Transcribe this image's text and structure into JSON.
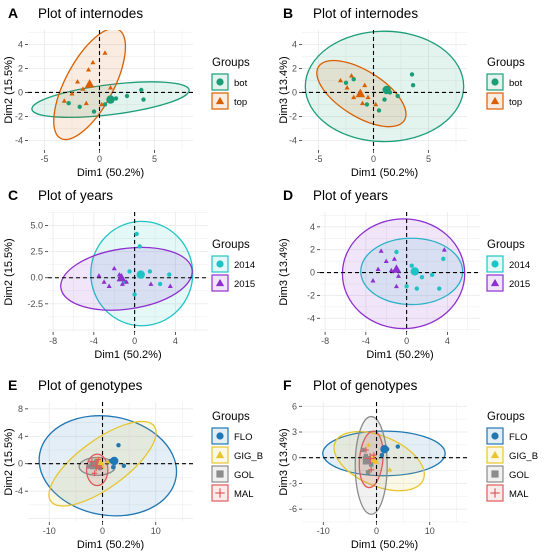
{
  "chart_data": [
    {
      "type": "scatter",
      "letter": "A",
      "title": "Plot of internodes",
      "xlabel": "Dim1 (50.2%)",
      "ylabel": "Dim2 (15.5%)",
      "xlim": [
        -6.5,
        8.5
      ],
      "ylim": [
        -4.8,
        5.2
      ],
      "xticks": [
        -5,
        0,
        5
      ],
      "yticks": [
        -4,
        -2,
        0,
        2,
        4
      ],
      "legend_title": "Groups",
      "legend_position": "right",
      "grid": true,
      "series": [
        {
          "name": "bot",
          "color": "#1b9e77",
          "marker": "circle",
          "points": [
            [
              -2.8,
              -0.9
            ],
            [
              -1.8,
              -1.2
            ],
            [
              -0.5,
              -1.6
            ],
            [
              0.5,
              -1.0
            ],
            [
              1.5,
              -0.5
            ],
            [
              2.5,
              -0.3
            ],
            [
              3.8,
              0.2
            ],
            [
              4.0,
              -0.6
            ]
          ],
          "mean": [
            1.0,
            -0.6
          ],
          "ellipse": {
            "cx": 1.0,
            "cy": -0.6,
            "rx": 7.2,
            "ry": 1.25,
            "angle": 7
          }
        },
        {
          "name": "top",
          "color": "#d95f02",
          "marker": "triangle",
          "points": [
            [
              -3.2,
              -0.7
            ],
            [
              -2.5,
              -0.1
            ],
            [
              -2.0,
              0.9
            ],
            [
              -1.5,
              0.3
            ],
            [
              -1.0,
              1.9
            ],
            [
              -0.6,
              2.5
            ],
            [
              0.5,
              3.3
            ],
            [
              0.2,
              -1.0
            ],
            [
              -1.2,
              -0.9
            ],
            [
              1.0,
              0.4
            ]
          ],
          "mean": [
            -0.9,
            0.7
          ],
          "ellipse": {
            "cx": -0.9,
            "cy": 0.7,
            "rx": 5.6,
            "ry": 2.0,
            "angle": 62
          }
        }
      ]
    },
    {
      "type": "scatter",
      "letter": "B",
      "title": "Plot of internodes",
      "xlabel": "Dim1 (50.2%)",
      "ylabel": "Dim3 (13.4%)",
      "xlim": [
        -6.5,
        8.5
      ],
      "ylim": [
        -4.8,
        5.2
      ],
      "xticks": [
        -5,
        0,
        5
      ],
      "yticks": [
        -4,
        -2,
        0,
        2,
        4
      ],
      "legend_title": "Groups",
      "legend_position": "right",
      "grid": true,
      "series": [
        {
          "name": "bot",
          "color": "#1b9e77",
          "marker": "circle",
          "points": [
            [
              -2.5,
              0.8
            ],
            [
              -1.8,
              1.1
            ],
            [
              -0.6,
              -1.0
            ],
            [
              0.5,
              -1.5
            ],
            [
              1.5,
              0.0
            ],
            [
              2.2,
              -0.3
            ],
            [
              3.5,
              1.5
            ],
            [
              3.6,
              0.6
            ],
            [
              1.0,
              -0.6
            ]
          ],
          "mean": [
            1.2,
            0.2
          ],
          "ellipse": {
            "cx": 1.0,
            "cy": 0.5,
            "rx": 7.2,
            "ry": 4.6,
            "angle": 0
          }
        },
        {
          "name": "top",
          "color": "#d95f02",
          "marker": "triangle",
          "points": [
            [
              -3.0,
              1.0
            ],
            [
              -2.0,
              1.4
            ],
            [
              -1.8,
              -0.4
            ],
            [
              -1.2,
              0.1
            ],
            [
              -1.0,
              -0.9
            ],
            [
              -0.5,
              -0.4
            ],
            [
              0.2,
              -1.0
            ],
            [
              -2.4,
              0.4
            ],
            [
              -0.8,
              0.6
            ]
          ],
          "mean": [
            -1.2,
            -0.1
          ],
          "ellipse": {
            "cx": -1.1,
            "cy": -0.1,
            "rx": 4.6,
            "ry": 1.9,
            "angle": -32
          }
        }
      ]
    },
    {
      "type": "scatter",
      "letter": "C",
      "title": "Plot of years",
      "xlabel": "Dim1 (50.2%)",
      "ylabel": "Dim2 (15.5%)",
      "xlim": [
        -8.5,
        7.2
      ],
      "ylim": [
        -5.2,
        6.3
      ],
      "xticks": [
        -8,
        -4,
        0,
        4
      ],
      "yticks": [
        -2.5,
        0.0,
        2.5,
        5.0
      ],
      "tick_labels_y": [
        "-2.5",
        "0.0",
        "2.5",
        "5.0"
      ],
      "legend_title": "Groups",
      "legend_position": "right",
      "grid": true,
      "series": [
        {
          "name": "2014",
          "color": "#1fc3c6",
          "marker": "circle",
          "points": [
            [
              0.2,
              4.2
            ],
            [
              0.5,
              3.0
            ],
            [
              -0.5,
              0.6
            ],
            [
              1.5,
              0.6
            ],
            [
              2.5,
              -0.6
            ],
            [
              -1.0,
              -0.4
            ],
            [
              0.0,
              -1.6
            ],
            [
              3.4,
              0.3
            ]
          ],
          "mean": [
            0.6,
            0.3
          ],
          "ellipse": {
            "cx": 0.7,
            "cy": 0.4,
            "rx": 5.0,
            "ry": 5.0,
            "angle": 0
          }
        },
        {
          "name": "2015",
          "color": "#8e2fcf",
          "marker": "triangle",
          "points": [
            [
              -3.5,
              0.2
            ],
            [
              -2.5,
              -0.8
            ],
            [
              -2.0,
              0.9
            ],
            [
              -1.5,
              0.3
            ],
            [
              -1.2,
              -0.6
            ],
            [
              -0.8,
              -0.4
            ],
            [
              -3.0,
              -0.4
            ],
            [
              1.6,
              -0.6
            ],
            [
              3.5,
              -0.8
            ]
          ],
          "mean": [
            -1.3,
            0.0
          ],
          "ellipse": {
            "cx": -0.8,
            "cy": -0.1,
            "rx": 6.5,
            "ry": 2.9,
            "angle": 8
          }
        }
      ]
    },
    {
      "type": "scatter",
      "letter": "D",
      "title": "Plot of years",
      "xlabel": "Dim1 (50.2%)",
      "ylabel": "Dim3 (13.4%)",
      "xlim": [
        -8.5,
        7.2
      ],
      "ylim": [
        -5.2,
        5.3
      ],
      "xticks": [
        -8,
        -4,
        0,
        4
      ],
      "yticks": [
        -4,
        -2,
        0,
        2,
        4
      ],
      "legend_title": "Groups",
      "legend_position": "right",
      "grid": true,
      "series": [
        {
          "name": "2014",
          "color": "#1fc3c6",
          "marker": "circle",
          "points": [
            [
              -1.0,
              1.8
            ],
            [
              0.5,
              0.6
            ],
            [
              1.5,
              -0.4
            ],
            [
              2.5,
              -0.2
            ],
            [
              3.6,
              1.2
            ],
            [
              0.0,
              -1.2
            ],
            [
              1.0,
              -1.4
            ],
            [
              3.2,
              -1.4
            ]
          ],
          "mean": [
            0.8,
            0.1
          ],
          "ellipse": {
            "cx": 0.5,
            "cy": 0.1,
            "rx": 5.0,
            "ry": 2.9,
            "angle": 0
          }
        },
        {
          "name": "2015",
          "color": "#8e2fcf",
          "marker": "triangle",
          "points": [
            [
              -2.5,
              1.9
            ],
            [
              -2.0,
              1.0
            ],
            [
              -1.5,
              0.2
            ],
            [
              -1.2,
              1.2
            ],
            [
              -0.8,
              -0.3
            ],
            [
              -2.8,
              0.3
            ],
            [
              -3.3,
              -0.7
            ],
            [
              -1.0,
              -1.2
            ],
            [
              3.7,
              2.0
            ]
          ],
          "mean": [
            -1.0,
            0.3
          ],
          "ellipse": {
            "cx": -0.3,
            "cy": -0.1,
            "rx": 6.0,
            "ry": 4.8,
            "angle": 0
          }
        }
      ]
    },
    {
      "type": "scatter",
      "letter": "E",
      "title": "Plot of genotypes",
      "xlabel": "Dim1 (50.2%)",
      "ylabel": "Dim2 (15.5%)",
      "xlim": [
        -14,
        17
      ],
      "ylim": [
        -8.5,
        9
      ],
      "xticks": [
        -10,
        0,
        10
      ],
      "yticks": [
        -4,
        0,
        4,
        8
      ],
      "legend_title": "Groups",
      "legend_position": "right",
      "grid": true,
      "series": [
        {
          "name": "FLO",
          "color": "#1f77b4",
          "marker": "circle",
          "points": [
            [
              3.0,
              2.7
            ],
            [
              1.5,
              0.4
            ],
            [
              4.0,
              -0.3
            ],
            [
              -1.0,
              0.3
            ],
            [
              2.0,
              -0.5
            ]
          ],
          "mean": [
            2.2,
            0.4
          ],
          "ellipse": {
            "cx": 1.0,
            "cy": -0.3,
            "rx": 13.0,
            "ry": 7.2,
            "angle": -10
          }
        },
        {
          "name": "GIG_B",
          "color": "#e8c52e",
          "marker": "triangle",
          "points": [
            [
              -1.0,
              0.6
            ],
            [
              0.0,
              -0.4
            ],
            [
              -2.0,
              0.2
            ],
            [
              1.0,
              0.3
            ]
          ],
          "mean": [
            -0.5,
            0.2
          ],
          "ellipse": {
            "cx": 0.0,
            "cy": 0.0,
            "rx": 12.0,
            "ry": 3.5,
            "angle": 36
          }
        },
        {
          "name": "GOL",
          "color": "#8c8c8c",
          "marker": "square",
          "points": [
            [
              -2.0,
              -0.1
            ],
            [
              -1.2,
              0.3
            ],
            [
              -0.5,
              -0.6
            ],
            [
              -2.6,
              -0.4
            ]
          ],
          "mean": [
            -1.6,
            -0.2
          ],
          "ellipse": {
            "cx": -1.0,
            "cy": -0.4,
            "rx": 3.4,
            "ry": 1.3,
            "angle": 0
          }
        },
        {
          "name": "MAL",
          "color": "#e05a5a",
          "marker": "plus",
          "points": [
            [
              -1.5,
              -1.4
            ],
            [
              -0.5,
              -0.6
            ],
            [
              -2.0,
              0.3
            ],
            [
              -0.8,
              0.6
            ]
          ],
          "mean": [
            -1.2,
            -0.3
          ],
          "ellipse": {
            "cx": -1.0,
            "cy": -0.9,
            "rx": 2.0,
            "ry": 2.3,
            "angle": 0
          }
        }
      ]
    },
    {
      "type": "scatter",
      "letter": "F",
      "title": "Plot of genotypes",
      "xlabel": "Dim1 (50.2%)",
      "ylabel": "Dim3 (13.4%)",
      "xlim": [
        -14,
        17
      ],
      "ylim": [
        -7.5,
        6.5
      ],
      "xticks": [
        -10,
        0,
        10
      ],
      "yticks": [
        -6,
        -3,
        0,
        3,
        6
      ],
      "legend_title": "Groups",
      "legend_position": "right",
      "grid": true,
      "series": [
        {
          "name": "FLO",
          "color": "#1f77b4",
          "marker": "circle",
          "points": [
            [
              2.0,
              1.0
            ],
            [
              4.0,
              1.3
            ],
            [
              1.0,
              0.3
            ],
            [
              -1.0,
              -0.3
            ]
          ],
          "mean": [
            1.5,
            1.0
          ],
          "ellipse": {
            "cx": 1.4,
            "cy": 0.5,
            "rx": 11.5,
            "ry": 2.6,
            "angle": 0
          }
        },
        {
          "name": "GIG_B",
          "color": "#e8c52e",
          "marker": "triangle",
          "points": [
            [
              -1.5,
              1.5
            ],
            [
              0.0,
              -0.5
            ],
            [
              -2.0,
              0.0
            ],
            [
              2.5,
              -1.4
            ]
          ],
          "mean": [
            -0.6,
            -0.2
          ],
          "ellipse": {
            "cx": 0.5,
            "cy": -0.4,
            "rx": 9.0,
            "ry": 2.9,
            "angle": -23
          }
        },
        {
          "name": "GOL",
          "color": "#8c8c8c",
          "marker": "square",
          "points": [
            [
              -2.0,
              0.2
            ],
            [
              -1.0,
              -0.8
            ],
            [
              -2.6,
              0.9
            ],
            [
              -1.6,
              -1.7
            ]
          ],
          "mean": [
            -1.8,
            -0.3
          ],
          "ellipse": {
            "cx": -1.0,
            "cy": -0.9,
            "rx": 3.0,
            "ry": 5.7,
            "angle": 0
          }
        },
        {
          "name": "MAL",
          "color": "#e05a5a",
          "marker": "plus",
          "points": [
            [
              -2.0,
              0.9
            ],
            [
              -1.0,
              -1.4
            ],
            [
              -0.5,
              0.3
            ]
          ],
          "mean": [
            -1.2,
            -0.1
          ],
          "ellipse": {
            "cx": -1.0,
            "cy": -0.2,
            "rx": 2.2,
            "ry": 3.3,
            "angle": -5
          }
        }
      ]
    }
  ]
}
